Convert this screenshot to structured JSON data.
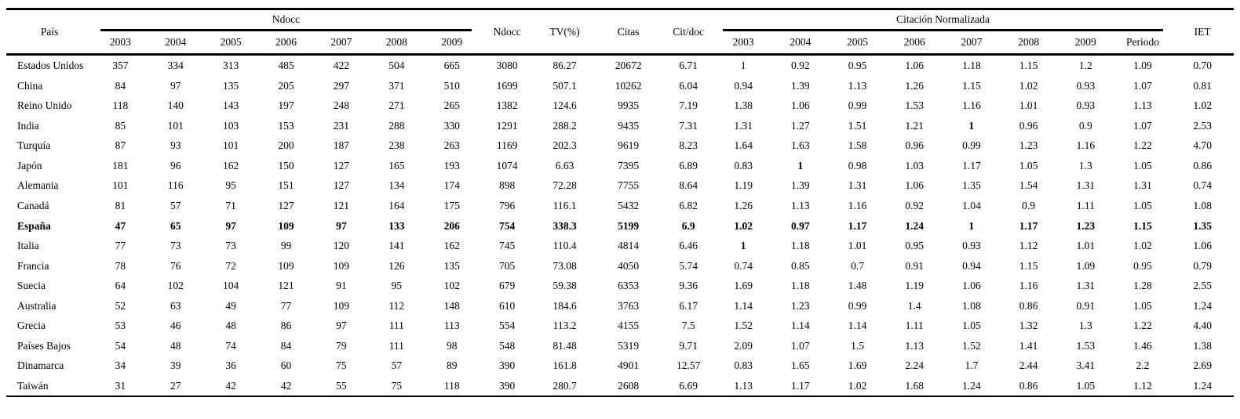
{
  "table": {
    "headers": {
      "pais": "País",
      "ndocc_group": "Ndocc",
      "ndocc_total": "Ndocc",
      "tv": "TV(%)",
      "citas": "Citas",
      "citdoc": "Cit/doc",
      "cn_group": "Citación Normalizada",
      "iet": "IET"
    },
    "ndocc_years": [
      "2003",
      "2004",
      "2005",
      "2006",
      "2007",
      "2008",
      "2009"
    ],
    "cn_cols": [
      "2003",
      "2004",
      "2005",
      "2006",
      "2007",
      "2008",
      "2009",
      "Periodo"
    ],
    "rows": [
      {
        "pais": "Estados Unidos",
        "ndocc": [
          "357",
          "334",
          "313",
          "485",
          "422",
          "504",
          "665"
        ],
        "ndocc_total": "3080",
        "tv": "86.27",
        "citas": "20672",
        "citdoc": "6.71",
        "cn": [
          "1",
          "0.92",
          "0.95",
          "1.06",
          "1.18",
          "1.15",
          "1.2",
          "1.09"
        ],
        "iet": "0.70",
        "bold_row": false,
        "bold_cn": []
      },
      {
        "pais": "China",
        "ndocc": [
          "84",
          "97",
          "135",
          "205",
          "297",
          "371",
          "510"
        ],
        "ndocc_total": "1699",
        "tv": "507.1",
        "citas": "10262",
        "citdoc": "6.04",
        "cn": [
          "0.94",
          "1.39",
          "1.13",
          "1.26",
          "1.15",
          "1.02",
          "0.93",
          "1.07"
        ],
        "iet": "0.81",
        "bold_row": false,
        "bold_cn": []
      },
      {
        "pais": "Reino Unido",
        "ndocc": [
          "118",
          "140",
          "143",
          "197",
          "248",
          "271",
          "265"
        ],
        "ndocc_total": "1382",
        "tv": "124.6",
        "citas": "9935",
        "citdoc": "7.19",
        "cn": [
          "1.38",
          "1.06",
          "0.99",
          "1.53",
          "1.16",
          "1.01",
          "0.93",
          "1.13"
        ],
        "iet": "1.02",
        "bold_row": false,
        "bold_cn": []
      },
      {
        "pais": "India",
        "ndocc": [
          "85",
          "101",
          "103",
          "153",
          "231",
          "288",
          "330"
        ],
        "ndocc_total": "1291",
        "tv": "288.2",
        "citas": "9435",
        "citdoc": "7.31",
        "cn": [
          "1.31",
          "1.27",
          "1.51",
          "1.21",
          "1",
          "0.96",
          "0.9",
          "1.07"
        ],
        "iet": "2.53",
        "bold_row": false,
        "bold_cn": [
          4
        ]
      },
      {
        "pais": "Turquía",
        "ndocc": [
          "87",
          "93",
          "101",
          "200",
          "187",
          "238",
          "263"
        ],
        "ndocc_total": "1169",
        "tv": "202.3",
        "citas": "9619",
        "citdoc": "8.23",
        "cn": [
          "1.64",
          "1.63",
          "1.58",
          "0.96",
          "0.99",
          "1.23",
          "1.16",
          "1.22"
        ],
        "iet": "4.70",
        "bold_row": false,
        "bold_cn": []
      },
      {
        "pais": "Japón",
        "ndocc": [
          "181",
          "96",
          "162",
          "150",
          "127",
          "165",
          "193"
        ],
        "ndocc_total": "1074",
        "tv": "6.63",
        "citas": "7395",
        "citdoc": "6.89",
        "cn": [
          "0.83",
          "1",
          "0.98",
          "1.03",
          "1.17",
          "1.05",
          "1.3",
          "1.05"
        ],
        "iet": "0.86",
        "bold_row": false,
        "bold_cn": [
          1
        ]
      },
      {
        "pais": "Alemania",
        "ndocc": [
          "101",
          "116",
          "95",
          "151",
          "127",
          "134",
          "174"
        ],
        "ndocc_total": "898",
        "tv": "72.28",
        "citas": "7755",
        "citdoc": "8.64",
        "cn": [
          "1.19",
          "1.39",
          "1.31",
          "1.06",
          "1.35",
          "1.54",
          "1.31",
          "1.31"
        ],
        "iet": "0.74",
        "bold_row": false,
        "bold_cn": []
      },
      {
        "pais": "Canadá",
        "ndocc": [
          "81",
          "57",
          "71",
          "127",
          "121",
          "164",
          "175"
        ],
        "ndocc_total": "796",
        "tv": "116.1",
        "citas": "5432",
        "citdoc": "6.82",
        "cn": [
          "1.26",
          "1.13",
          "1.16",
          "0.92",
          "1.04",
          "0.9",
          "1.11",
          "1.05"
        ],
        "iet": "1.08",
        "bold_row": false,
        "bold_cn": []
      },
      {
        "pais": "España",
        "ndocc": [
          "47",
          "65",
          "97",
          "109",
          "97",
          "133",
          "206"
        ],
        "ndocc_total": "754",
        "tv": "338.3",
        "citas": "5199",
        "citdoc": "6.9",
        "cn": [
          "1.02",
          "0.97",
          "1.17",
          "1.24",
          "1",
          "1.17",
          "1.23",
          "1.15"
        ],
        "iet": "1.35",
        "bold_row": true,
        "bold_cn": []
      },
      {
        "pais": "Italia",
        "ndocc": [
          "77",
          "73",
          "73",
          "99",
          "120",
          "141",
          "162"
        ],
        "ndocc_total": "745",
        "tv": "110.4",
        "citas": "4814",
        "citdoc": "6.46",
        "cn": [
          "1",
          "1.18",
          "1.01",
          "0.95",
          "0.93",
          "1.12",
          "1.01",
          "1.02"
        ],
        "iet": "1.06",
        "bold_row": false,
        "bold_cn": [
          0
        ]
      },
      {
        "pais": "Francia",
        "ndocc": [
          "78",
          "76",
          "72",
          "109",
          "109",
          "126",
          "135"
        ],
        "ndocc_total": "705",
        "tv": "73.08",
        "citas": "4050",
        "citdoc": "5.74",
        "cn": [
          "0.74",
          "0.85",
          "0.7",
          "0.91",
          "0.94",
          "1.15",
          "1.09",
          "0.95"
        ],
        "iet": "0.79",
        "bold_row": false,
        "bold_cn": []
      },
      {
        "pais": "Suecia",
        "ndocc": [
          "64",
          "102",
          "104",
          "121",
          "91",
          "95",
          "102"
        ],
        "ndocc_total": "679",
        "tv": "59.38",
        "citas": "6353",
        "citdoc": "9.36",
        "cn": [
          "1.69",
          "1.18",
          "1.48",
          "1.19",
          "1.06",
          "1.16",
          "1.31",
          "1.28"
        ],
        "iet": "2.55",
        "bold_row": false,
        "bold_cn": []
      },
      {
        "pais": "Australia",
        "ndocc": [
          "52",
          "63",
          "49",
          "77",
          "109",
          "112",
          "148"
        ],
        "ndocc_total": "610",
        "tv": "184.6",
        "citas": "3763",
        "citdoc": "6.17",
        "cn": [
          "1.14",
          "1.23",
          "0.99",
          "1.4",
          "1.08",
          "0.86",
          "0.91",
          "1.05"
        ],
        "iet": "1.24",
        "bold_row": false,
        "bold_cn": []
      },
      {
        "pais": "Grecia",
        "ndocc": [
          "53",
          "46",
          "48",
          "86",
          "97",
          "111",
          "113"
        ],
        "ndocc_total": "554",
        "tv": "113.2",
        "citas": "4155",
        "citdoc": "7.5",
        "cn": [
          "1.52",
          "1.14",
          "1.14",
          "1.11",
          "1.05",
          "1.32",
          "1.3",
          "1.22"
        ],
        "iet": "4.40",
        "bold_row": false,
        "bold_cn": []
      },
      {
        "pais": "Países Bajos",
        "ndocc": [
          "54",
          "48",
          "74",
          "84",
          "79",
          "111",
          "98"
        ],
        "ndocc_total": "548",
        "tv": "81.48",
        "citas": "5319",
        "citdoc": "9.71",
        "cn": [
          "2.09",
          "1.07",
          "1.5",
          "1.13",
          "1.52",
          "1.41",
          "1.53",
          "1.46"
        ],
        "iet": "1.38",
        "bold_row": false,
        "bold_cn": []
      },
      {
        "pais": "Dinamarca",
        "ndocc": [
          "34",
          "39",
          "36",
          "60",
          "75",
          "57",
          "89"
        ],
        "ndocc_total": "390",
        "tv": "161.8",
        "citas": "4901",
        "citdoc": "12.57",
        "cn": [
          "0.83",
          "1.65",
          "1.69",
          "2.24",
          "1.7",
          "2.44",
          "3.41",
          "2.2"
        ],
        "iet": "2.69",
        "bold_row": false,
        "bold_cn": []
      },
      {
        "pais": "Taiwán",
        "ndocc": [
          "31",
          "27",
          "42",
          "42",
          "55",
          "75",
          "118"
        ],
        "ndocc_total": "390",
        "tv": "280.7",
        "citas": "2608",
        "citdoc": "6.69",
        "cn": [
          "1.13",
          "1.17",
          "1.02",
          "1.68",
          "1.24",
          "0.86",
          "1.05",
          "1.12"
        ],
        "iet": "1.24",
        "bold_row": false,
        "bold_cn": []
      }
    ]
  }
}
